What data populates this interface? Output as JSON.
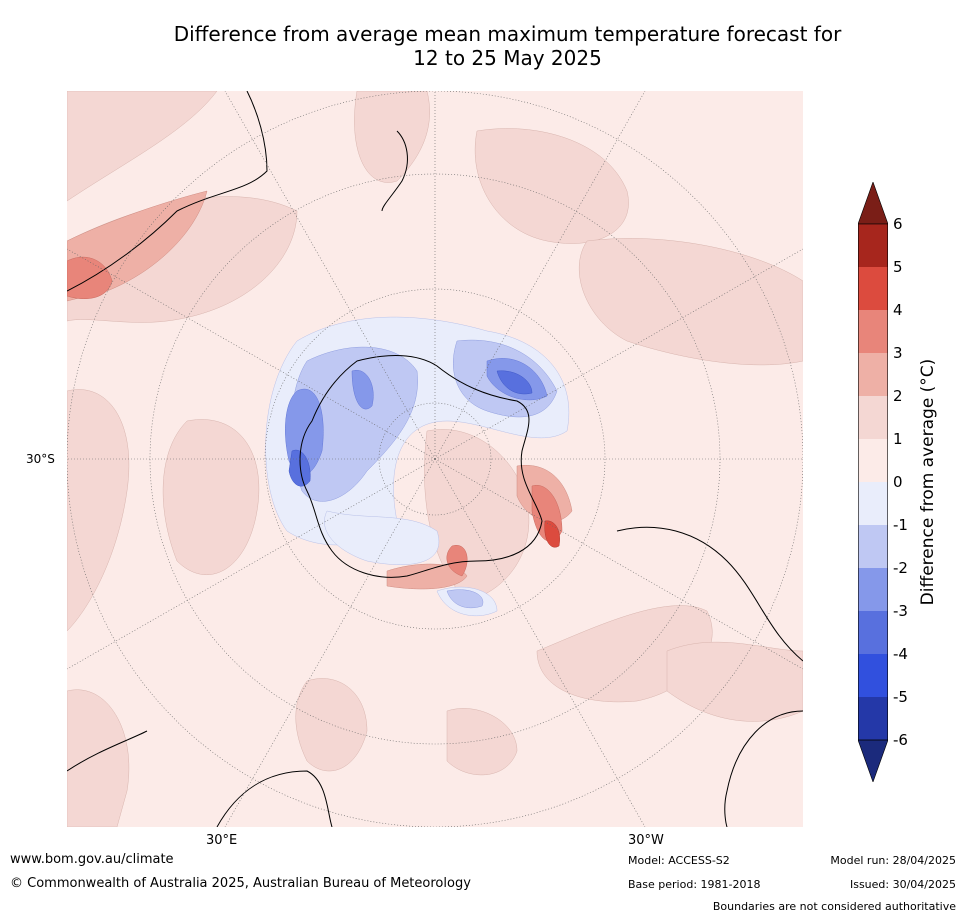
{
  "title_line1": "Difference from average mean maximum temperature forecast for",
  "title_line2": "12 to 25 May 2025",
  "map": {
    "lat_label": "30°S",
    "lon_labels": {
      "left": "30°E",
      "right": "30°W"
    }
  },
  "colorbar": {
    "label": "Difference from average (°C)",
    "ticks": [
      "6",
      "5",
      "4",
      "3",
      "2",
      "1",
      "0",
      "-1",
      "-2",
      "-3",
      "-4",
      "-5",
      "-6"
    ],
    "colors": [
      "#a7261d",
      "#dc4b3e",
      "#e8857a",
      "#eeb0a6",
      "#f4d7d3",
      "#fcebe8",
      "#e9edfb",
      "#bfc8f3",
      "#8598ea",
      "#5870de",
      "#3150de",
      "#2438a8"
    ],
    "over_color": "#7a1e17",
    "under_color": "#1b2a7c"
  },
  "footer": {
    "website": "www.bom.gov.au/climate",
    "copyright": "© Commonwealth of Australia 2025, Australian Bureau of Meteorology",
    "model": "Model: ACCESS-S2",
    "base_period": "Base period: 1981-2018",
    "model_run": "Model run: 28/04/2025",
    "issued": "Issued: 30/04/2025",
    "disclaimer": "Boundaries are not considered authoritative"
  }
}
